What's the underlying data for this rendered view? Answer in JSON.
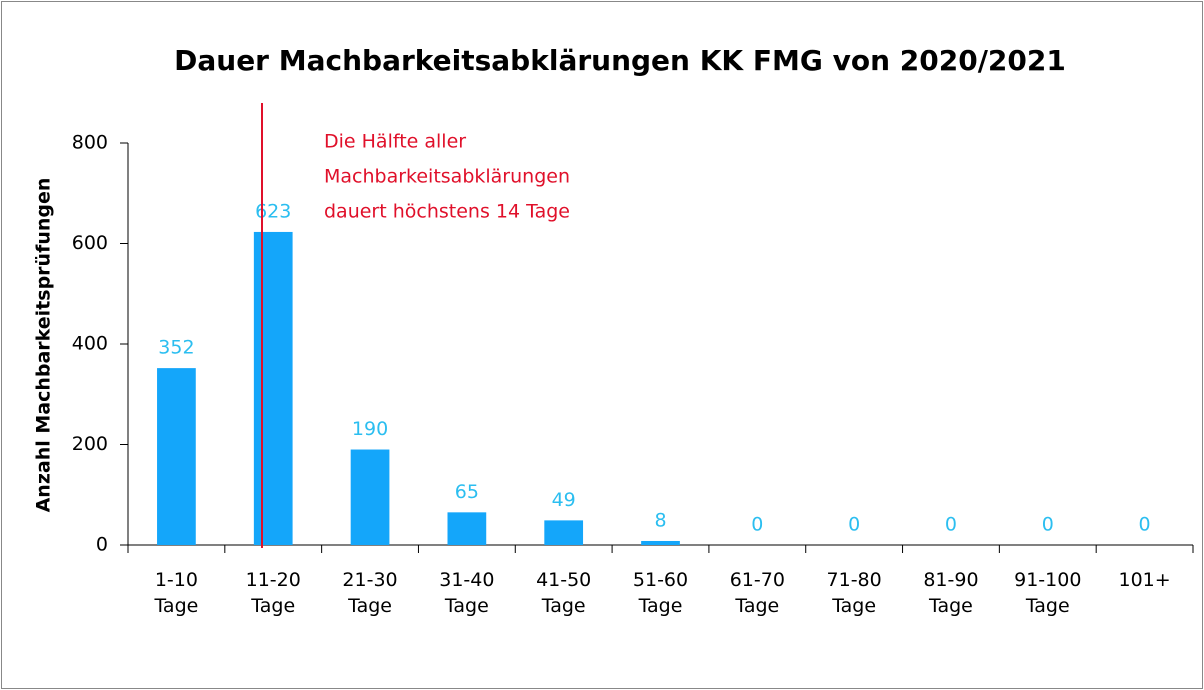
{
  "chart_data": {
    "type": "bar",
    "title": "Dauer Machbarkeitsabklärungen KK FMG von 2020/2021",
    "ylabel": "Anzahl Machbarkeitsprüfungen",
    "categories": [
      "1-10 Tage",
      "11-20 Tage",
      "21-30 Tage",
      "31-40 Tage",
      "41-50 Tage",
      "51-60 Tage",
      "61-70 Tage",
      "71-80 Tage",
      "81-90 Tage",
      "91-100 Tage",
      "101+"
    ],
    "values": [
      352,
      623,
      190,
      65,
      49,
      8,
      0,
      0,
      0,
      0,
      0
    ],
    "color": "#14a6fa",
    "label_color": "#2bbef0",
    "ylim": [
      0,
      800
    ],
    "yticks": [
      0,
      200,
      400,
      600,
      800
    ],
    "annotation": [
      "Die Hälfte aller",
      "Machbarkeitsabklärungen",
      "dauert höchstens 14 Tage"
    ],
    "annotation_color": "#e0102a"
  }
}
